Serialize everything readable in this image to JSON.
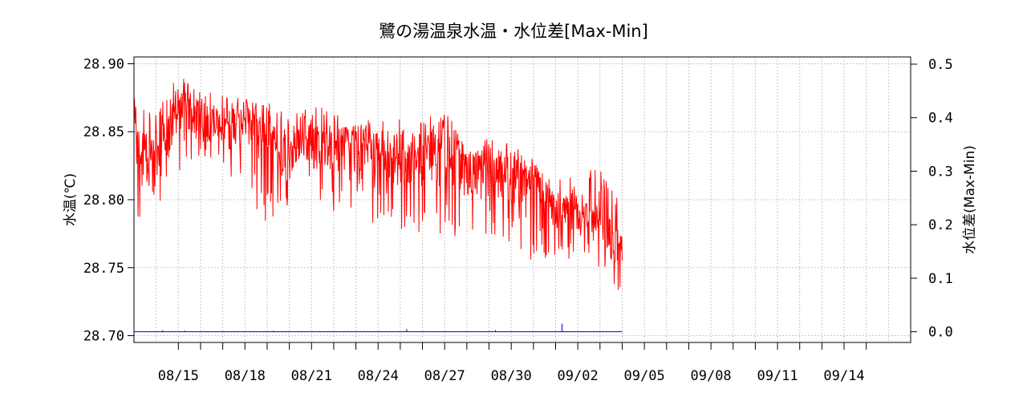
{
  "chart_data": {
    "type": "line",
    "title": "鷺の湯温泉水温・水位差[Max-Min]",
    "ylabel_left": "水温(℃)",
    "ylabel_right": "水位差(Max-Min)",
    "xlim": [
      "2025-08-13",
      "2025-09-17"
    ],
    "ylim_left": [
      28.695,
      28.905
    ],
    "ylim_right": [
      -0.02,
      0.5135
    ],
    "left_ticks": [
      "28.70",
      "28.75",
      "28.80",
      "28.85",
      "28.90"
    ],
    "right_ticks": [
      "0.0",
      "0.1",
      "0.2",
      "0.3",
      "0.4",
      "0.5"
    ],
    "x_tick_labels": [
      "08/15",
      "08/18",
      "08/21",
      "08/24",
      "08/27",
      "08/30",
      "09/02",
      "09/05",
      "09/08",
      "09/11",
      "09/14"
    ],
    "grid": true,
    "series": [
      {
        "axis": "left",
        "color": "#ff0000",
        "x": [
          "2025-08-13",
          "2025-08-14",
          "2025-08-15",
          "2025-08-16",
          "2025-08-17",
          "2025-08-18",
          "2025-08-19",
          "2025-08-20",
          "2025-08-21",
          "2025-08-22",
          "2025-08-23",
          "2025-08-24",
          "2025-08-25",
          "2025-08-26",
          "2025-08-27",
          "2025-08-28",
          "2025-08-29",
          "2025-08-30",
          "2025-08-31",
          "2025-09-01",
          "2025-09-02",
          "2025-09-03",
          "2025-09-04"
        ],
        "y": [
          28.84,
          28.825,
          28.865,
          28.86,
          28.855,
          28.86,
          28.848,
          28.83,
          28.848,
          28.835,
          28.84,
          28.84,
          28.825,
          28.838,
          28.838,
          28.822,
          28.825,
          28.815,
          28.815,
          28.79,
          28.79,
          28.78,
          28.76
        ],
        "y_high": [
          28.875,
          28.868,
          28.892,
          28.88,
          28.878,
          28.875,
          28.873,
          28.862,
          28.872,
          28.865,
          28.858,
          28.86,
          28.86,
          28.858,
          28.87,
          28.85,
          28.845,
          28.843,
          28.828,
          28.815,
          28.822,
          28.822,
          28.795
        ],
        "y_low": [
          28.775,
          28.795,
          28.818,
          28.826,
          28.82,
          28.808,
          28.78,
          28.79,
          28.788,
          28.79,
          28.785,
          28.778,
          28.776,
          28.775,
          28.765,
          28.77,
          28.775,
          28.758,
          28.752,
          28.748,
          28.76,
          28.748,
          28.728
        ]
      },
      {
        "axis": "right",
        "color": "#0000cc",
        "x": [
          "2025-08-13",
          "2025-09-04"
        ],
        "y": [
          0.0,
          0.0
        ],
        "spikes": [
          {
            "x": "2025-08-14",
            "y": 0.003
          },
          {
            "x": "2025-08-15",
            "y": 0.002
          },
          {
            "x": "2025-08-19",
            "y": 0.002
          },
          {
            "x": "2025-08-25",
            "y": 0.005
          },
          {
            "x": "2025-08-29",
            "y": 0.003
          },
          {
            "x": "2025-09-01",
            "y": 0.015
          }
        ]
      }
    ]
  }
}
